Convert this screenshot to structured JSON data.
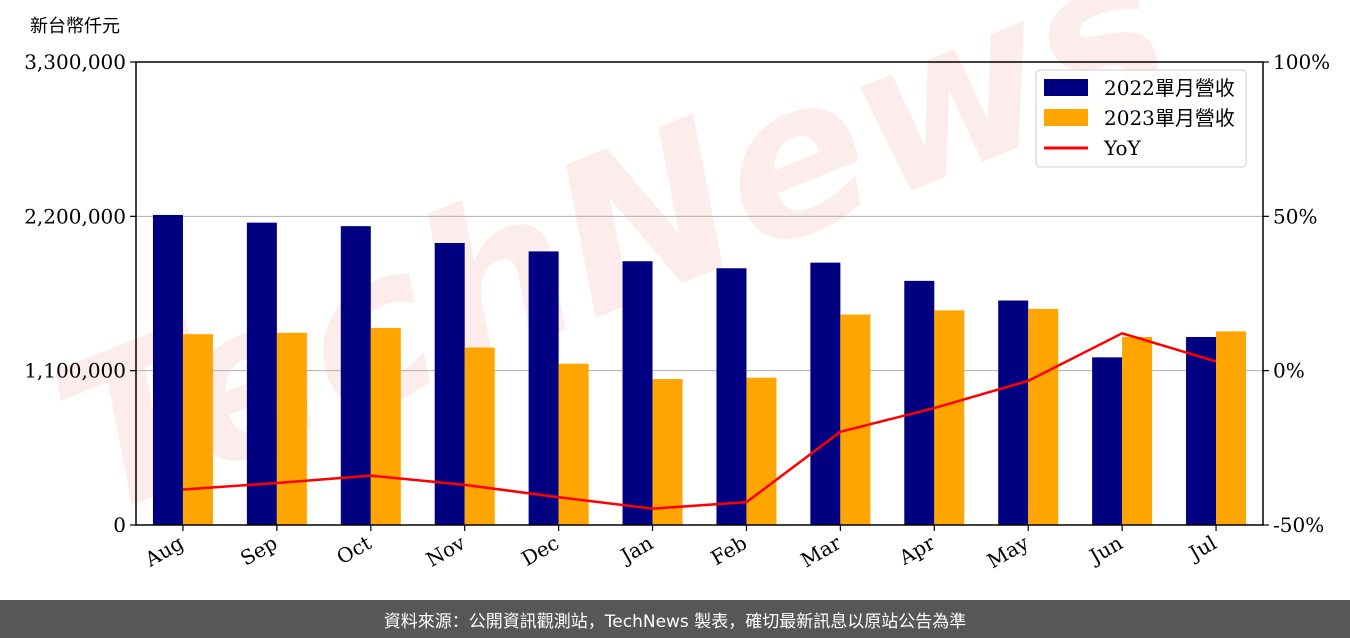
{
  "chart_data": {
    "type": "bar",
    "unit_label": "新台幣仟元",
    "categories": [
      "Aug",
      "Sep",
      "Oct",
      "Nov",
      "Dec",
      "Jan",
      "Feb",
      "Mar",
      "Apr",
      "May",
      "Jun",
      "Jul"
    ],
    "series": [
      {
        "name": "2022單月營收",
        "type": "bar",
        "axis": "left",
        "color": "#000080",
        "values": [
          2210000,
          2155000,
          2130000,
          2010000,
          1950000,
          1880000,
          1830000,
          1870000,
          1740000,
          1600000,
          1195000,
          1340000
        ]
      },
      {
        "name": "2023單月營收",
        "type": "bar",
        "axis": "left",
        "color": "#ffa500",
        "values": [
          1360000,
          1370000,
          1405000,
          1265000,
          1150000,
          1040000,
          1050000,
          1500000,
          1530000,
          1540000,
          1340000,
          1380000
        ]
      },
      {
        "name": "YoY",
        "type": "line",
        "axis": "right",
        "color": "#ff0000",
        "values": [
          -38.5,
          -36.4,
          -34,
          -37,
          -41,
          -44.7,
          -42.6,
          -19.8,
          -12.1,
          -3.3,
          12.1,
          3
        ]
      }
    ],
    "ylim": [
      0,
      3300000
    ],
    "y_ticks": [
      "0",
      "1,100,000",
      "2,200,000",
      "3,300,000"
    ],
    "y_tick_values": [
      0,
      1100000,
      2200000,
      3300000
    ],
    "y2lim": [
      -50,
      100
    ],
    "y2_ticks": [
      "-50%",
      "0%",
      "50%",
      "100%"
    ],
    "y2_tick_values": [
      -50,
      0,
      50,
      100
    ],
    "grid": "horizontal",
    "legend_position": "top-right",
    "watermark": "TechNews"
  },
  "footer": {
    "source_text": "資料來源：公開資訊觀測站，TechNews 製表，確切最新訊息以原站公告為準"
  }
}
